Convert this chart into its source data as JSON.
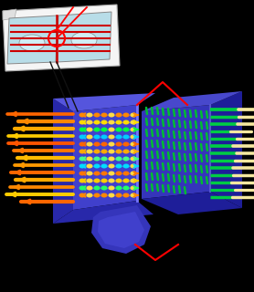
{
  "bg": "#000000",
  "inset_paper": "#f5f5f5",
  "inset_cell": "#b8dde8",
  "inset_border": "#aaaaaa",
  "inset_actin": "#cc0000",
  "inset_circle": "#ff0000",
  "cell_front_L": "#4040cc",
  "cell_side_L": "#2828aa",
  "cell_top_L": "#5555dd",
  "cell_front_R": "#3535bb",
  "cell_side_R": "#1e1e99",
  "cell_top_R": "#4848cc",
  "cell_curve": "#3030bb",
  "actin_left_colors": [
    "#ff6600",
    "#ff8800",
    "#ffaa00",
    "#ffcc00",
    "#ff5500",
    "#ff7700",
    "#ffbb00",
    "#ff9900",
    "#ff6600",
    "#ffaa00",
    "#ff8800",
    "#ffcc00"
  ],
  "actin_right_green": "#00cc44",
  "actin_right_pale": "#f5e8a0",
  "cadherin_row_colors": [
    "#ff8800",
    "#ffdd00",
    "#00ff44",
    "#00ccff",
    "#ff6600",
    "#ffaa00",
    "#44ff88",
    "#00ddff",
    "#ff7700",
    "#ffcc00",
    "#22ff66"
  ],
  "red_line": "#ff0000",
  "black_line": "#111111",
  "junction_highlight": "#7777ff"
}
